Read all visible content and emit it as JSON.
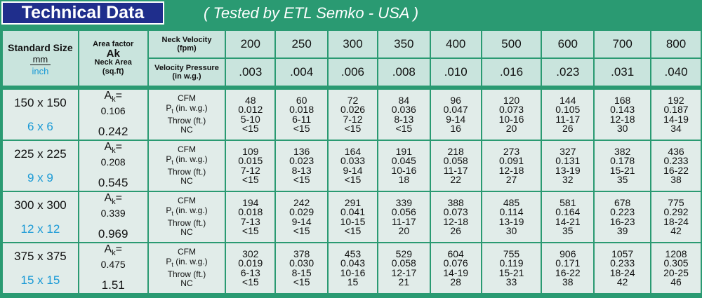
{
  "banner": {
    "title": "Technical Data",
    "subtitle": "( Tested by ETL Semko - USA )"
  },
  "header": {
    "standard_size": "Standard Size",
    "mm": "mm",
    "inch": "inch",
    "area_factor": "Area factor",
    "ak": "Ak",
    "neck_area": "Neck Area",
    "sqft": "(sq.ft)",
    "neck_velocity": "Neck Velocity",
    "fpm": "(fpm)",
    "velocity_pressure": "Velocity Pressure",
    "in_wg": "(in w.g.)",
    "velocities": [
      "200",
      "250",
      "300",
      "350",
      "400",
      "500",
      "600",
      "700",
      "800"
    ],
    "pressures": [
      ".003",
      ".004",
      ".006",
      ".008",
      ".010",
      ".016",
      ".023",
      ".031",
      ".040"
    ]
  },
  "labels": {
    "ak_prefix": "A",
    "ak_sub": "k",
    "ak_suffix": "=",
    "cfm": "CFM",
    "pt_prefix": "P",
    "pt_sub": "t",
    "pt_suffix": " (in. w.g.)",
    "throw": "Throw (ft.)",
    "nc": "NC"
  },
  "rows": [
    {
      "mm": "150 x 150",
      "inch": "6 x 6",
      "ak": "0.106",
      "neck_area": "0.242",
      "cols": [
        {
          "cfm": "48",
          "pt": "0.012",
          "throw": "5-10",
          "nc": "<15"
        },
        {
          "cfm": "60",
          "pt": "0.018",
          "throw": "6-11",
          "nc": "<15"
        },
        {
          "cfm": "72",
          "pt": "0.026",
          "throw": "7-12",
          "nc": "<15"
        },
        {
          "cfm": "84",
          "pt": "0.036",
          "throw": "8-13",
          "nc": "<15"
        },
        {
          "cfm": "96",
          "pt": "0.047",
          "throw": "9-14",
          "nc": "16"
        },
        {
          "cfm": "120",
          "pt": "0.073",
          "throw": "10-16",
          "nc": "20"
        },
        {
          "cfm": "144",
          "pt": "0.105",
          "throw": "11-17",
          "nc": "26"
        },
        {
          "cfm": "168",
          "pt": "0.143",
          "throw": "12-18",
          "nc": "30"
        },
        {
          "cfm": "192",
          "pt": "0.187",
          "throw": "14-19",
          "nc": "34"
        }
      ]
    },
    {
      "mm": "225 x 225",
      "inch": "9 x 9",
      "ak": "0.208",
      "neck_area": "0.545",
      "cols": [
        {
          "cfm": "109",
          "pt": "0.015",
          "throw": "7-12",
          "nc": "<15"
        },
        {
          "cfm": "136",
          "pt": "0.023",
          "throw": "8-13",
          "nc": "<15"
        },
        {
          "cfm": "164",
          "pt": "0.033",
          "throw": "9-14",
          "nc": "<15"
        },
        {
          "cfm": "191",
          "pt": "0.045",
          "throw": "10-16",
          "nc": "18"
        },
        {
          "cfm": "218",
          "pt": "0.058",
          "throw": "11-17",
          "nc": "22"
        },
        {
          "cfm": "273",
          "pt": "0.091",
          "throw": "12-18",
          "nc": "27"
        },
        {
          "cfm": "327",
          "pt": "0.131",
          "throw": "13-19",
          "nc": "32"
        },
        {
          "cfm": "382",
          "pt": "0.178",
          "throw": "15-21",
          "nc": "35"
        },
        {
          "cfm": "436",
          "pt": "0.233",
          "throw": "16-22",
          "nc": "38"
        }
      ]
    },
    {
      "mm": "300 x 300",
      "inch": "12 x 12",
      "ak": "0.339",
      "neck_area": "0.969",
      "cols": [
        {
          "cfm": "194",
          "pt": "0.018",
          "throw": "7-13",
          "nc": "<15"
        },
        {
          "cfm": "242",
          "pt": "0.029",
          "throw": "9-14",
          "nc": "<15"
        },
        {
          "cfm": "291",
          "pt": "0.041",
          "throw": "10-15",
          "nc": "<15"
        },
        {
          "cfm": "339",
          "pt": "0.056",
          "throw": "11-17",
          "nc": "20"
        },
        {
          "cfm": "388",
          "pt": "0.073",
          "throw": "12-18",
          "nc": "26"
        },
        {
          "cfm": "485",
          "pt": "0.114",
          "throw": "13-19",
          "nc": "30"
        },
        {
          "cfm": "581",
          "pt": "0.164",
          "throw": "14-21",
          "nc": "35"
        },
        {
          "cfm": "678",
          "pt": "0.223",
          "throw": "16-23",
          "nc": "39"
        },
        {
          "cfm": "775",
          "pt": "0.292",
          "throw": "18-24",
          "nc": "42"
        }
      ]
    },
    {
      "mm": "375 x 375",
      "inch": "15 x 15",
      "ak": "0.475",
      "neck_area": "1.51",
      "cols": [
        {
          "cfm": "302",
          "pt": "0.019",
          "throw": "6-13",
          "nc": "<15"
        },
        {
          "cfm": "378",
          "pt": "0.030",
          "throw": "8-15",
          "nc": "<15"
        },
        {
          "cfm": "453",
          "pt": "0.043",
          "throw": "10-16",
          "nc": "15"
        },
        {
          "cfm": "529",
          "pt": "0.058",
          "throw": "12-17",
          "nc": "21"
        },
        {
          "cfm": "604",
          "pt": "0.076",
          "throw": "14-19",
          "nc": "28"
        },
        {
          "cfm": "755",
          "pt": "0.119",
          "throw": "15-21",
          "nc": "33"
        },
        {
          "cfm": "906",
          "pt": "0.171",
          "throw": "16-22",
          "nc": "38"
        },
        {
          "cfm": "1057",
          "pt": "0.233",
          "throw": "18-24",
          "nc": "42"
        },
        {
          "cfm": "1208",
          "pt": "0.305",
          "throw": "20-25",
          "nc": "46"
        }
      ]
    }
  ]
}
